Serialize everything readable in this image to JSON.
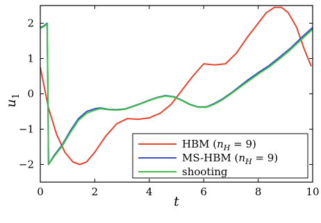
{
  "chart_data": {
    "type": "line",
    "title": "",
    "xlabel": "t",
    "ylabel_main": "u",
    "ylabel_sub": "1",
    "xlim": [
      0,
      10
    ],
    "ylim": [
      -2.5,
      2.5
    ],
    "xticks": [
      0,
      2,
      4,
      6,
      8,
      10
    ],
    "yticks": [
      -2,
      -1,
      0,
      1,
      2
    ],
    "grid": false,
    "legend_position": "bottom-right",
    "series": [
      {
        "name": "HBM (n_H = 9)",
        "legend_label": "HBM (",
        "legend_math": "n",
        "legend_sub": "H",
        "legend_tail": " = 9)",
        "color": "#e8412c",
        "x": [
          0,
          0.3,
          0.6,
          0.9,
          1.2,
          1.45,
          1.7,
          2.0,
          2.4,
          2.8,
          3.2,
          3.6,
          4.0,
          4.4,
          4.8,
          5.2,
          5.6,
          6.0,
          6.4,
          6.8,
          7.2,
          7.6,
          8.0,
          8.3,
          8.6,
          8.85,
          9.1,
          9.4,
          9.7,
          9.95
        ],
        "y": [
          0.75,
          -0.4,
          -1.15,
          -1.65,
          -1.93,
          -2.0,
          -1.93,
          -1.65,
          -1.2,
          -0.85,
          -0.7,
          -0.72,
          -0.68,
          -0.55,
          -0.3,
          0.1,
          0.5,
          0.85,
          0.82,
          0.85,
          1.15,
          1.6,
          2.0,
          2.3,
          2.45,
          2.45,
          2.3,
          1.9,
          1.25,
          0.78
        ]
      },
      {
        "name": "MS-HBM (n_H = 9)",
        "legend_label": "MS-HBM (",
        "legend_math": "n",
        "legend_sub": "H",
        "legend_tail": " = 9)",
        "color": "#3a4fc8",
        "x": [
          0,
          0.02,
          0.12,
          0.2,
          0.25,
          0.28,
          0.3,
          0.5,
          0.8,
          1.1,
          1.4,
          1.7,
          2.0,
          2.2,
          2.5,
          2.8,
          3.1,
          3.4,
          3.7,
          4.0,
          4.3,
          4.6,
          4.9,
          5.2,
          5.5,
          5.8,
          6.1,
          6.4,
          6.7,
          7.0,
          7.3,
          7.6,
          8.0,
          8.4,
          8.8,
          9.2,
          9.6,
          10.0
        ],
        "y": [
          1.9,
          1.88,
          1.92,
          1.97,
          2.0,
          0.0,
          -2.0,
          -1.75,
          -1.45,
          -1.05,
          -0.7,
          -0.5,
          -0.42,
          -0.4,
          -0.44,
          -0.45,
          -0.43,
          -0.35,
          -0.27,
          -0.18,
          -0.1,
          -0.05,
          -0.08,
          -0.18,
          -0.3,
          -0.37,
          -0.37,
          -0.27,
          -0.14,
          0.02,
          0.2,
          0.38,
          0.6,
          0.8,
          1.05,
          1.3,
          1.6,
          1.88
        ]
      },
      {
        "name": "shooting",
        "legend_label": "shooting",
        "legend_math": "",
        "legend_sub": "",
        "legend_tail": "",
        "color": "#3cc043",
        "x": [
          0,
          0.02,
          0.12,
          0.2,
          0.25,
          0.28,
          0.3,
          0.5,
          0.8,
          1.1,
          1.4,
          1.7,
          2.0,
          2.2,
          2.5,
          2.8,
          3.1,
          3.4,
          3.7,
          4.0,
          4.3,
          4.6,
          4.9,
          5.2,
          5.5,
          5.8,
          6.1,
          6.4,
          6.7,
          7.0,
          7.3,
          7.6,
          8.0,
          8.4,
          8.8,
          9.2,
          9.6,
          10.0
        ],
        "y": [
          1.88,
          1.86,
          1.9,
          1.95,
          1.98,
          0.0,
          -2.0,
          -1.78,
          -1.48,
          -1.1,
          -0.75,
          -0.55,
          -0.46,
          -0.42,
          -0.45,
          -0.46,
          -0.44,
          -0.36,
          -0.28,
          -0.19,
          -0.11,
          -0.06,
          -0.09,
          -0.19,
          -0.31,
          -0.38,
          -0.38,
          -0.29,
          -0.16,
          0.0,
          0.17,
          0.34,
          0.56,
          0.76,
          1.0,
          1.26,
          1.55,
          1.83
        ]
      }
    ]
  }
}
